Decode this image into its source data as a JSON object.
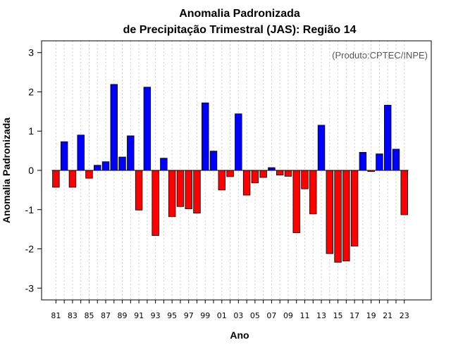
{
  "chart_data": {
    "type": "bar",
    "title_line1": "Anomalia Padronizada",
    "title_line2": "de Precipitação Trimestral (JAS): Região 14",
    "xlabel": "Ano",
    "ylabel": "Anomalia Padronizada",
    "source": "(Produto:CPTEC/INPE)",
    "ylim": [
      -3.3,
      3.3
    ],
    "yticks": [
      -3,
      -2,
      -1,
      0,
      1,
      2,
      3
    ],
    "ytick_labels": [
      "-3",
      "-2",
      "-1",
      "0",
      "1",
      "2",
      "3"
    ],
    "xtick_labels": [
      "81",
      "83",
      "85",
      "87",
      "89",
      "91",
      "93",
      "95",
      "97",
      "99",
      "01",
      "03",
      "05",
      "07",
      "09",
      "11",
      "13",
      "15",
      "17",
      "19",
      "21",
      "23"
    ],
    "years": [
      1981,
      1982,
      1983,
      1984,
      1985,
      1986,
      1987,
      1988,
      1989,
      1990,
      1991,
      1992,
      1993,
      1994,
      1995,
      1996,
      1997,
      1998,
      1999,
      2000,
      2001,
      2002,
      2003,
      2004,
      2005,
      2006,
      2007,
      2008,
      2009,
      2010,
      2011,
      2012,
      2013,
      2014,
      2015,
      2016,
      2017,
      2018,
      2019,
      2020,
      2021,
      2022,
      2023
    ],
    "values": [
      -0.43,
      0.73,
      -0.43,
      0.9,
      -0.2,
      0.13,
      0.22,
      2.19,
      0.34,
      0.88,
      -1.01,
      2.12,
      -1.66,
      0.31,
      -1.18,
      -0.92,
      -0.98,
      -1.09,
      1.72,
      0.49,
      -0.5,
      -0.16,
      1.44,
      -0.63,
      -0.32,
      -0.18,
      0.07,
      -0.12,
      -0.15,
      -1.59,
      -0.47,
      -1.11,
      1.15,
      -2.12,
      -2.34,
      -2.31,
      -1.93,
      0.46,
      -0.03,
      0.42,
      1.66,
      0.54,
      -1.13
    ],
    "positive_color": "#0000ff",
    "negative_color": "#ff0000",
    "grid": "vertical dotted"
  }
}
